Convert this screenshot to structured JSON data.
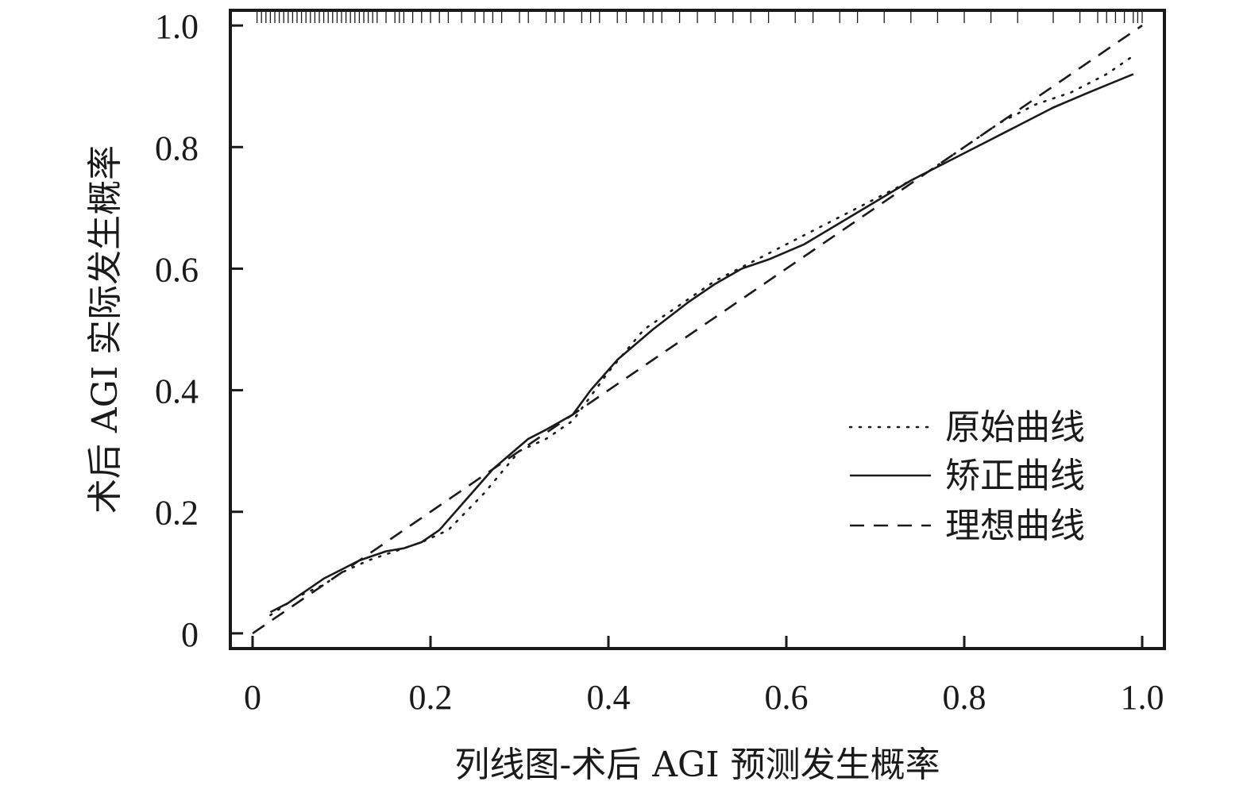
{
  "chart_data": {
    "type": "line",
    "title": "",
    "xlabel": "列线图-术后 AGI 预测发生概率",
    "ylabel": "术后 AGI 实际发生概率",
    "xlim": [
      -0.025,
      1.025
    ],
    "ylim": [
      -0.025,
      1.025
    ],
    "x_ticks": [
      0,
      0.2,
      0.4,
      0.6,
      0.8,
      1.0
    ],
    "x_tick_labels": [
      "0",
      "0.2",
      "0.4",
      "0.6",
      "0.8",
      "1.0"
    ],
    "y_ticks": [
      0,
      0.2,
      0.4,
      0.6,
      0.8,
      1.0
    ],
    "y_tick_labels": [
      "0",
      "0.2",
      "0.4",
      "0.6",
      "0.8",
      "1.0"
    ],
    "legend_position": "right",
    "series": [
      {
        "name": "原始曲线",
        "style": "dotted",
        "x": [
          0.02,
          0.05,
          0.08,
          0.1,
          0.13,
          0.15,
          0.17,
          0.19,
          0.22,
          0.26,
          0.3,
          0.33,
          0.36,
          0.4,
          0.44,
          0.48,
          0.52,
          0.56,
          0.6,
          0.64,
          0.68,
          0.72,
          0.76,
          0.8,
          0.84,
          0.88,
          0.92,
          0.96,
          0.99
        ],
        "y": [
          0.03,
          0.06,
          0.08,
          0.1,
          0.12,
          0.13,
          0.14,
          0.15,
          0.17,
          0.23,
          0.3,
          0.32,
          0.35,
          0.43,
          0.5,
          0.54,
          0.58,
          0.61,
          0.64,
          0.67,
          0.7,
          0.73,
          0.76,
          0.8,
          0.84,
          0.87,
          0.89,
          0.92,
          0.95
        ]
      },
      {
        "name": "矫正曲线",
        "style": "solid",
        "x": [
          0.02,
          0.04,
          0.06,
          0.08,
          0.1,
          0.12,
          0.15,
          0.17,
          0.19,
          0.21,
          0.24,
          0.27,
          0.31,
          0.33,
          0.36,
          0.38,
          0.41,
          0.45,
          0.49,
          0.52,
          0.55,
          0.58,
          0.62,
          0.66,
          0.7,
          0.74,
          0.78,
          0.82,
          0.86,
          0.9,
          0.94,
          0.99
        ],
        "y": [
          0.035,
          0.05,
          0.07,
          0.09,
          0.105,
          0.12,
          0.135,
          0.14,
          0.15,
          0.17,
          0.22,
          0.27,
          0.32,
          0.335,
          0.36,
          0.4,
          0.45,
          0.5,
          0.545,
          0.575,
          0.6,
          0.615,
          0.64,
          0.675,
          0.71,
          0.745,
          0.775,
          0.805,
          0.835,
          0.865,
          0.89,
          0.92
        ]
      },
      {
        "name": "理想曲线",
        "style": "dashed",
        "x": [
          0,
          1
        ],
        "y": [
          0,
          1
        ]
      }
    ],
    "rug_x": [
      0.005,
      0.01,
      0.015,
      0.02,
      0.025,
      0.03,
      0.035,
      0.04,
      0.045,
      0.05,
      0.055,
      0.06,
      0.065,
      0.07,
      0.075,
      0.08,
      0.085,
      0.09,
      0.095,
      0.1,
      0.105,
      0.11,
      0.115,
      0.12,
      0.125,
      0.13,
      0.135,
      0.14,
      0.15,
      0.16,
      0.165,
      0.17,
      0.18,
      0.19,
      0.2,
      0.21,
      0.22,
      0.235,
      0.25,
      0.26,
      0.27,
      0.28,
      0.3,
      0.31,
      0.33,
      0.34,
      0.35,
      0.37,
      0.38,
      0.39,
      0.41,
      0.42,
      0.44,
      0.45,
      0.46,
      0.48,
      0.5,
      0.52,
      0.54,
      0.56,
      0.58,
      0.61,
      0.63,
      0.66,
      0.68,
      0.71,
      0.74,
      0.77,
      0.8,
      0.83,
      0.86,
      0.9,
      0.93,
      0.95,
      0.96,
      0.97,
      0.98,
      0.99,
      0.995,
      1.0
    ]
  }
}
